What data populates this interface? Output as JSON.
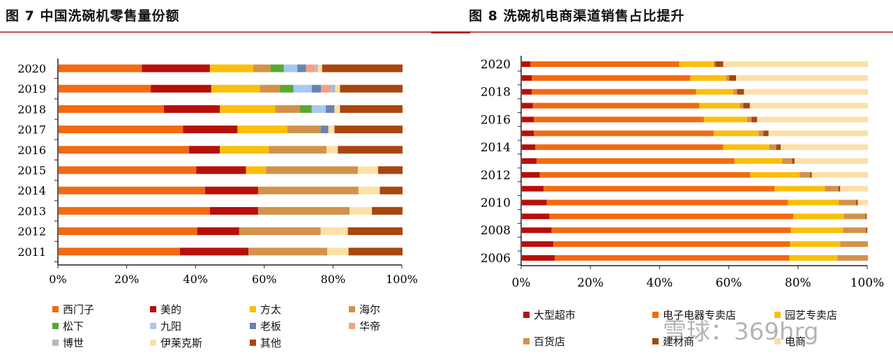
{
  "watermark": "雪球：369hrg",
  "chart_data": [
    {
      "type": "bar",
      "orientation": "horizontal",
      "stacked": true,
      "title": "图 7 中国洗碗机零售量份额",
      "categories": [
        "2020",
        "2019",
        "2018",
        "2017",
        "2016",
        "2015",
        "2014",
        "2013",
        "2012",
        "2011"
      ],
      "xlim": [
        0,
        100
      ],
      "x_ticks": [
        "0%",
        "20%",
        "40%",
        "60%",
        "80%",
        "100%"
      ],
      "legend_position": "bottom",
      "series": [
        {
          "name": "西门子",
          "color": "#f36a10",
          "values": [
            24.2,
            26.8,
            30.6,
            36.2,
            37.9,
            40.0,
            42.6,
            44.0,
            40.3,
            35.3
          ]
        },
        {
          "name": "美的",
          "color": "#b70f0a",
          "values": [
            19.8,
            17.6,
            16.3,
            15.8,
            9.0,
            14.5,
            15.4,
            14.0,
            12.2,
            19.9
          ]
        },
        {
          "name": "方太",
          "color": "#fbbf0a",
          "values": [
            12.6,
            14.1,
            16.1,
            14.5,
            14.2,
            5.8,
            0,
            0,
            0,
            0
          ]
        },
        {
          "name": "海尔",
          "color": "#d3924a",
          "values": [
            5.0,
            5.9,
            7.1,
            9.7,
            16.8,
            26.7,
            29.2,
            26.6,
            23.7,
            22.9
          ]
        },
        {
          "name": "松下",
          "color": "#5aa832",
          "values": [
            3.9,
            3.9,
            3.5,
            0,
            0,
            0,
            0,
            0,
            0,
            0
          ]
        },
        {
          "name": "九阳",
          "color": "#a9c8ee",
          "values": [
            3.9,
            5.3,
            4.1,
            0,
            0,
            0,
            0,
            0,
            0,
            0
          ]
        },
        {
          "name": "老板",
          "color": "#6683b4",
          "values": [
            2.5,
            2.7,
            2.5,
            2.2,
            0,
            0,
            0,
            0,
            0,
            0
          ]
        },
        {
          "name": "华帝",
          "color": "#f4a080",
          "values": [
            2.6,
            2.6,
            0,
            0,
            0,
            0,
            0,
            0,
            0,
            0
          ]
        },
        {
          "name": "博世",
          "color": "#b8b8c4",
          "values": [
            0.9,
            1.5,
            0,
            0,
            0,
            0,
            0,
            0,
            0,
            0
          ]
        },
        {
          "name": "伊莱克斯",
          "color": "#fbe0a8",
          "values": [
            1.2,
            1.4,
            1.6,
            1.8,
            3.3,
            5.9,
            6.2,
            6.5,
            7.9,
            6.2
          ]
        },
        {
          "name": "其他",
          "color": "#a8460e",
          "values": [
            23.4,
            18.2,
            18.2,
            19.8,
            18.8,
            7.1,
            6.6,
            8.9,
            15.9,
            15.7
          ]
        }
      ]
    },
    {
      "type": "bar",
      "orientation": "horizontal",
      "stacked": true,
      "title": "图 8 洗碗机电商渠道销售占比提升",
      "categories": [
        "2020",
        "2019",
        "2018",
        "2017",
        "2016",
        "2015",
        "2014",
        "2013",
        "2012",
        "2011",
        "2010",
        "2009",
        "2008",
        "2007",
        "2006"
      ],
      "category_labels_shown": [
        "2020",
        "2018",
        "2016",
        "2014",
        "2012",
        "2010",
        "2008",
        "2006"
      ],
      "xlim": [
        0,
        100
      ],
      "x_ticks": [
        "0%",
        "20%",
        "40%",
        "60%",
        "80%",
        "100%"
      ],
      "legend_position": "bottom",
      "series": [
        {
          "name": "大型超市",
          "color": "#b70f0a",
          "values": [
            2.5,
            2.9,
            2.9,
            3.2,
            3.5,
            3.5,
            3.9,
            4.3,
            5.2,
            6.3,
            7.2,
            8.0,
            8.6,
            9.1,
            9.5
          ]
        },
        {
          "name": "电子电器专卖店",
          "color": "#f36a10",
          "values": [
            43.0,
            45.8,
            47.4,
            48.1,
            49.1,
            52.0,
            54.3,
            57.1,
            60.8,
            66.7,
            69.7,
            70.5,
            69.1,
            68.4,
            67.8
          ]
        },
        {
          "name": "园艺专卖店",
          "color": "#fbbf0a",
          "values": [
            9.9,
            10.3,
            10.8,
            11.7,
            12.5,
            12.9,
            13.3,
            13.9,
            14.2,
            14.6,
            14.7,
            14.6,
            15.1,
            14.5,
            13.9
          ]
        },
        {
          "name": "百货店",
          "color": "#d3924a",
          "values": [
            0.5,
            0.9,
            1.1,
            1.0,
            1.3,
            1.4,
            2.0,
            2.8,
            3.1,
            3.9,
            5.0,
            6.2,
            6.7,
            8.0,
            8.8
          ]
        },
        {
          "name": "建材商",
          "color": "#a8460e",
          "values": [
            2.3,
            2.0,
            2.0,
            1.9,
            1.6,
            1.5,
            1.3,
            0.7,
            0.5,
            0.5,
            0.5,
            0.3,
            0.3,
            0,
            0
          ]
        },
        {
          "name": "电商",
          "color": "#fbe0a8",
          "values": [
            41.8,
            38.1,
            35.8,
            34.1,
            32.0,
            28.7,
            25.2,
            21.2,
            16.2,
            8.0,
            2.9,
            0.4,
            0.2,
            0,
            0
          ]
        }
      ]
    }
  ]
}
